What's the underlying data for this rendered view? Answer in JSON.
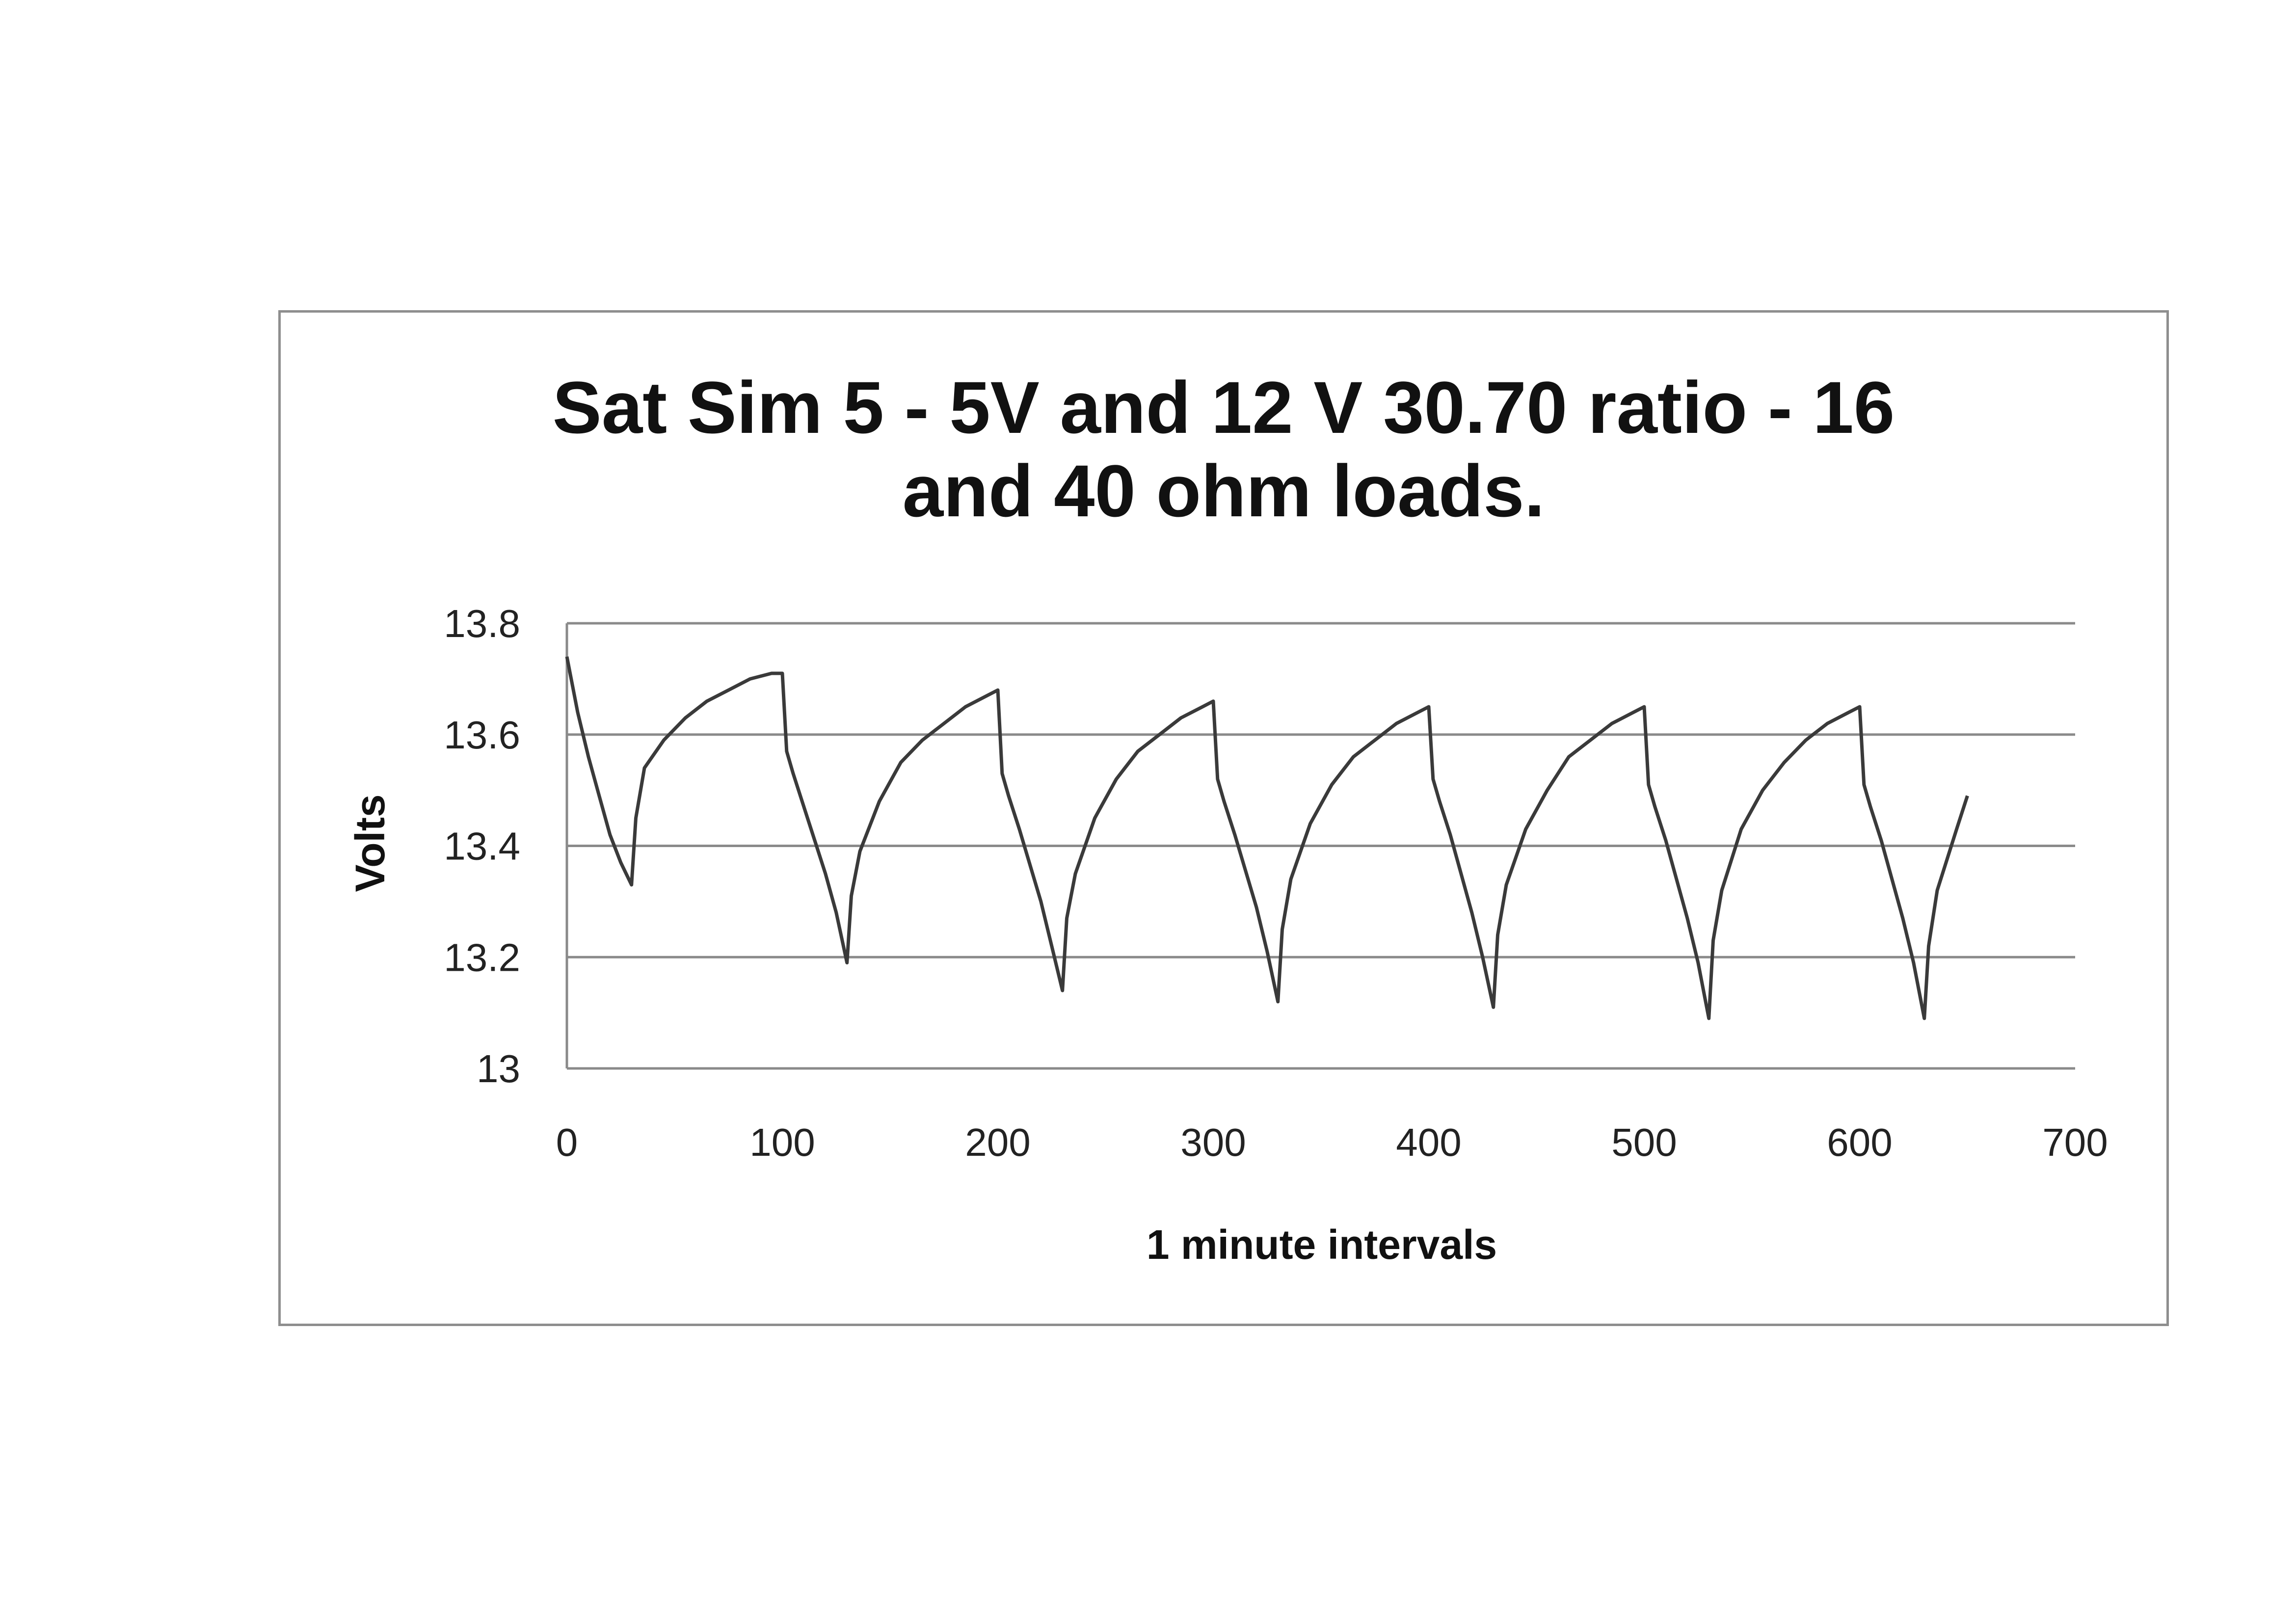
{
  "chart_data": {
    "type": "line",
    "title_line1": "Sat Sim 5 - 5V and 12 V 30.70 ratio - 16",
    "title_line2": "and 40 ohm loads.",
    "xlabel": "1 minute intervals",
    "ylabel": "Volts",
    "xlim": [
      0,
      700
    ],
    "ylim": [
      13,
      13.8
    ],
    "xticks": [
      0,
      100,
      200,
      300,
      400,
      500,
      600,
      700
    ],
    "yticks": [
      13,
      13.2,
      13.4,
      13.6,
      13.8
    ],
    "ytick_labels": [
      "13",
      "13.2",
      "13.4",
      "13.6",
      "13.8"
    ],
    "grid": true,
    "legend": "none",
    "line_color": "#3a3a3a",
    "series": [
      {
        "x": [
          0,
          5,
          10,
          15,
          20,
          25,
          30,
          32,
          36,
          45,
          55,
          65,
          75,
          85,
          95,
          100,
          102,
          105,
          110,
          120,
          125,
          130,
          132,
          136,
          145,
          155,
          165,
          175,
          185,
          195,
          200,
          202,
          205,
          210,
          220,
          225,
          230,
          232,
          236,
          245,
          255,
          265,
          275,
          285,
          295,
          300,
          302,
          305,
          310,
          320,
          325,
          330,
          332,
          336,
          345,
          355,
          365,
          375,
          385,
          395,
          400,
          402,
          405,
          410,
          420,
          425,
          430,
          432,
          436,
          445,
          455,
          465,
          475,
          485,
          495,
          500,
          502,
          505,
          510,
          520,
          525,
          530,
          532,
          536,
          545,
          555,
          565,
          575,
          585,
          595,
          600,
          602,
          605,
          610,
          620,
          625,
          630,
          632,
          636,
          645,
          650
        ],
        "y": [
          13.74,
          13.64,
          13.56,
          13.49,
          13.42,
          13.37,
          13.33,
          13.45,
          13.54,
          13.59,
          13.63,
          13.66,
          13.68,
          13.7,
          13.71,
          13.71,
          13.57,
          13.53,
          13.47,
          13.35,
          13.28,
          13.19,
          13.31,
          13.39,
          13.48,
          13.55,
          13.59,
          13.62,
          13.65,
          13.67,
          13.68,
          13.53,
          13.49,
          13.43,
          13.3,
          13.22,
          13.14,
          13.27,
          13.35,
          13.45,
          13.52,
          13.57,
          13.6,
          13.63,
          13.65,
          13.66,
          13.52,
          13.48,
          13.42,
          13.29,
          13.21,
          13.12,
          13.25,
          13.34,
          13.44,
          13.51,
          13.56,
          13.59,
          13.62,
          13.64,
          13.65,
          13.52,
          13.48,
          13.42,
          13.28,
          13.2,
          13.11,
          13.24,
          13.33,
          13.43,
          13.5,
          13.56,
          13.59,
          13.62,
          13.64,
          13.65,
          13.51,
          13.47,
          13.41,
          13.27,
          13.19,
          13.09,
          13.23,
          13.32,
          13.43,
          13.5,
          13.55,
          13.59,
          13.62,
          13.64,
          13.65,
          13.51,
          13.47,
          13.41,
          13.27,
          13.19,
          13.09,
          13.22,
          13.32,
          13.43,
          13.49
        ]
      }
    ]
  }
}
